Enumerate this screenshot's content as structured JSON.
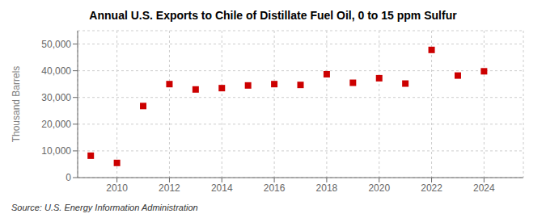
{
  "chart_data": {
    "type": "scatter",
    "title": "Annual U.S. Exports to Chile of Distillate Fuel Oil, 0 to 15 ppm Sulfur",
    "ylabel": "Thousand Barrels",
    "annotations": [
      "Source: U.S. Energy Information Administration"
    ],
    "x": [
      2009,
      2010,
      2011,
      2012,
      2013,
      2014,
      2015,
      2016,
      2017,
      2018,
      2019,
      2020,
      2021,
      2022,
      2023,
      2024
    ],
    "values": [
      8200,
      5500,
      26800,
      35000,
      33000,
      33500,
      34500,
      35000,
      34700,
      38700,
      35500,
      37200,
      35200,
      47800,
      38200,
      39800
    ],
    "color": "#cc0000",
    "marker": "square",
    "xlim": [
      2008.5,
      2025.5
    ],
    "ylim": [
      0,
      55000
    ],
    "xticks": [
      2010,
      2012,
      2014,
      2016,
      2018,
      2020,
      2022,
      2024
    ],
    "yticks": [
      0,
      {
        "value": 10000,
        "label": "10,000"
      },
      {
        "value": 20000,
        "label": "20,000"
      },
      {
        "value": 30000,
        "label": "30,000"
      },
      {
        "value": 40000,
        "label": "40,000"
      },
      {
        "value": 50000,
        "label": "50,000"
      }
    ],
    "grid": true
  }
}
